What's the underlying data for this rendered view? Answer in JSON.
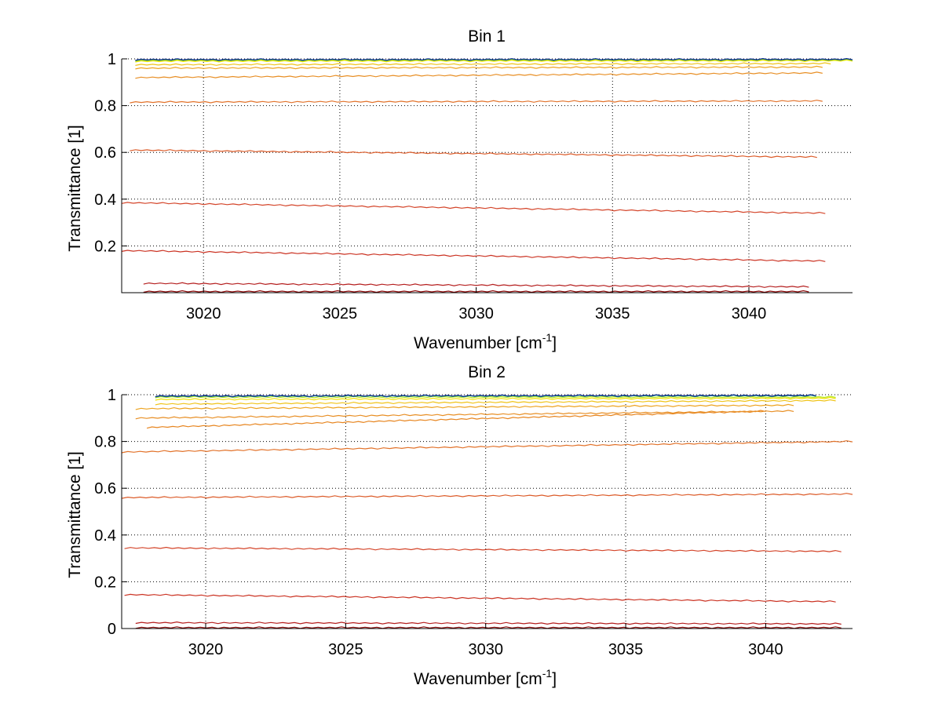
{
  "chart_data": [
    {
      "type": "line",
      "title": "Bin 1",
      "xlabel": "Wavenumber [cm",
      "xlabel_sup": "-1",
      "xlabel_end": "]",
      "ylabel": "Transmittance [1]",
      "xlim": [
        3017,
        3043.8
      ],
      "ylim": [
        0,
        1
      ],
      "xticks": [
        3020,
        3025,
        3030,
        3035,
        3040
      ],
      "xtick_labels": [
        "3020",
        "3025",
        "3030",
        "3035",
        "3040"
      ],
      "yticks": [
        0.2,
        0.4,
        0.6,
        0.8,
        1
      ],
      "ytick_labels": [
        "0.2",
        "0.4",
        "0.6",
        "0.8",
        "1"
      ],
      "grid": true,
      "series": [
        {
          "color": "#0a2a8c",
          "x": [
            3017.5,
            3043.8
          ],
          "y": [
            0.997,
            0.998
          ]
        },
        {
          "color": "#2f9e8f",
          "x": [
            3017.5,
            3043.8
          ],
          "y": [
            0.996,
            0.997
          ]
        },
        {
          "color": "#b5e61d",
          "x": [
            3017.5,
            3043.8
          ],
          "y": [
            0.993,
            0.995
          ]
        },
        {
          "color": "#f2e300",
          "x": [
            3017.5,
            3043.8
          ],
          "y": [
            0.99,
            0.992
          ]
        },
        {
          "color": "#f0c419",
          "x": [
            3017.5,
            3043
          ],
          "y": [
            0.975,
            0.98
          ]
        },
        {
          "color": "#eda31f",
          "x": [
            3017.5,
            3042.7
          ],
          "y": [
            0.96,
            0.965
          ]
        },
        {
          "color": "#e88f25",
          "x": [
            3017.5,
            3042.7
          ],
          "y": [
            0.92,
            0.94
          ]
        },
        {
          "color": "#e2722a",
          "x": [
            3017.3,
            3042.7
          ],
          "y": [
            0.815,
            0.82
          ]
        },
        {
          "color": "#dc5c2a",
          "x": [
            3017.3,
            3042.5
          ],
          "y": [
            0.61,
            0.58
          ]
        },
        {
          "color": "#d4452a",
          "x": [
            3017,
            3042.8
          ],
          "y": [
            0.385,
            0.34
          ]
        },
        {
          "color": "#cb3323",
          "x": [
            3017,
            3042.8
          ],
          "y": [
            0.18,
            0.135
          ]
        },
        {
          "color": "#b51f1f",
          "x": [
            3017.8,
            3042.2
          ],
          "y": [
            0.04,
            0.025
          ]
        },
        {
          "color": "#8c0a0a",
          "x": [
            3017.8,
            3042.2
          ],
          "y": [
            0.005,
            0.005
          ]
        }
      ]
    },
    {
      "type": "line",
      "title": "Bin 2",
      "xlabel": "Wavenumber [cm",
      "xlabel_sup": "-1",
      "xlabel_end": "]",
      "ylabel": "Transmittance [1]",
      "xlim": [
        3017,
        3043.1
      ],
      "ylim": [
        0,
        1
      ],
      "xticks": [
        3020,
        3025,
        3030,
        3035,
        3040
      ],
      "xtick_labels": [
        "3020",
        "3025",
        "3030",
        "3035",
        "3040"
      ],
      "yticks": [
        0,
        0.2,
        0.4,
        0.6,
        0.8,
        1
      ],
      "ytick_labels": [
        "0",
        "0.2",
        "0.4",
        "0.6",
        "0.8",
        "1"
      ],
      "grid": true,
      "series": [
        {
          "color": "#0a2a8c",
          "x": [
            3018.2,
            3041.8
          ],
          "y": [
            0.995,
            0.997
          ]
        },
        {
          "color": "#2f9e8f",
          "x": [
            3018.2,
            3041.8
          ],
          "y": [
            0.993,
            0.995
          ]
        },
        {
          "color": "#b5e61d",
          "x": [
            3018.2,
            3042.5
          ],
          "y": [
            0.99,
            0.99
          ]
        },
        {
          "color": "#f2e300",
          "x": [
            3018.2,
            3042.5
          ],
          "y": [
            0.98,
            0.985
          ]
        },
        {
          "color": "#f0c419",
          "x": [
            3018.2,
            3042.5
          ],
          "y": [
            0.96,
            0.975
          ]
        },
        {
          "color": "#eda31f",
          "x": [
            3017.5,
            3041
          ],
          "y": [
            0.94,
            0.955
          ]
        },
        {
          "color": "#e88f25",
          "x": [
            3017.5,
            3041
          ],
          "y": [
            0.9,
            0.93
          ]
        },
        {
          "color": "#e7851f",
          "x": [
            3017.9,
            3040
          ],
          "y": [
            0.86,
            0.93
          ]
        },
        {
          "color": "#e2722a",
          "x": [
            3017,
            3043.1
          ],
          "y": [
            0.755,
            0.8
          ]
        },
        {
          "color": "#dc5c2a",
          "x": [
            3017,
            3043.1
          ],
          "y": [
            0.56,
            0.575
          ]
        },
        {
          "color": "#d4452a",
          "x": [
            3017.1,
            3042.7
          ],
          "y": [
            0.345,
            0.33
          ]
        },
        {
          "color": "#cb3323",
          "x": [
            3017.1,
            3042.5
          ],
          "y": [
            0.145,
            0.115
          ]
        },
        {
          "color": "#b51f1f",
          "x": [
            3017.5,
            3042.7
          ],
          "y": [
            0.025,
            0.02
          ]
        },
        {
          "color": "#8c0a0a",
          "x": [
            3017.5,
            3042.7
          ],
          "y": [
            0.004,
            0.004
          ]
        }
      ]
    }
  ]
}
